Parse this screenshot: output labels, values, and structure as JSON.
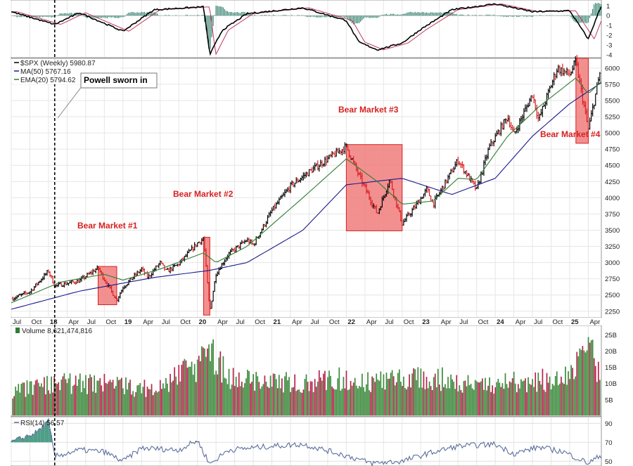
{
  "chart_data": {
    "type": "line",
    "main": {
      "symbol_label": "$SPX (Weekly) 5980.87",
      "ma_label": "MA(50) 5767.16",
      "ema_label": "EMA(20) 5794.62",
      "ylim": [
        2150,
        6150
      ],
      "y_ticks": [
        2250,
        2500,
        2750,
        3000,
        3250,
        3500,
        3750,
        4000,
        4250,
        4500,
        4750,
        5000,
        5250,
        5500,
        5750,
        6000
      ],
      "series": [
        {
          "name": "$SPX (Weekly)",
          "color": "#000000",
          "x": [
            "2017-07",
            "2017-10",
            "2018-01",
            "2018-02",
            "2018-06",
            "2018-09",
            "2018-10",
            "2018-12",
            "2019-01",
            "2019-04",
            "2019-05",
            "2019-07",
            "2019-08",
            "2019-10",
            "2020-01",
            "2020-02",
            "2020-03",
            "2020-04",
            "2020-06",
            "2020-09",
            "2020-10",
            "2021-01",
            "2021-04",
            "2021-07",
            "2021-10",
            "2022-01",
            "2022-03",
            "2022-06",
            "2022-08",
            "2022-10",
            "2022-12",
            "2023-02",
            "2023-03",
            "2023-07",
            "2023-10",
            "2023-12",
            "2024-03",
            "2024-04",
            "2024-07",
            "2024-08",
            "2024-11",
            "2025-01",
            "2025-02",
            "2025-04",
            "2025-06"
          ],
          "values": [
            2440,
            2550,
            2870,
            2640,
            2720,
            2920,
            2740,
            2420,
            2620,
            2900,
            2770,
            3000,
            2860,
            2980,
            3300,
            3370,
            2240,
            2830,
            3130,
            3350,
            3270,
            3800,
            4180,
            4400,
            4600,
            4790,
            4350,
            3750,
            4280,
            3600,
            3850,
            4130,
            3900,
            4580,
            4120,
            4770,
            5250,
            4970,
            5600,
            5200,
            6000,
            5900,
            6100,
            5050,
            5980
          ]
        },
        {
          "name": "MA(50)",
          "color": "#1a1a8c",
          "x": [
            "2017-07",
            "2018-06",
            "2019-06",
            "2020-03",
            "2020-09",
            "2021-06",
            "2022-01",
            "2022-10",
            "2023-06",
            "2024-01",
            "2024-07",
            "2025-01",
            "2025-06"
          ],
          "values": [
            2280,
            2560,
            2770,
            2880,
            3000,
            3500,
            4200,
            4300,
            4050,
            4300,
            4950,
            5450,
            5770
          ]
        },
        {
          "name": "EMA(20)",
          "color": "#2e7d32",
          "x": [
            "2017-07",
            "2018-03",
            "2018-10",
            "2019-01",
            "2019-07",
            "2020-02",
            "2020-04",
            "2020-09",
            "2021-06",
            "2022-01",
            "2022-06",
            "2022-10",
            "2023-03",
            "2023-07",
            "2023-10",
            "2024-03",
            "2024-08",
            "2025-02",
            "2025-04",
            "2025-06"
          ],
          "values": [
            2380,
            2700,
            2820,
            2730,
            2900,
            3150,
            3000,
            3250,
            4000,
            4600,
            4250,
            3900,
            3950,
            4300,
            4280,
            4950,
            5400,
            5850,
            5600,
            5790
          ]
        }
      ],
      "annotations": [
        {
          "label": "Bear Market #1",
          "start": "2018-09",
          "end": "2018-12",
          "low": 2350,
          "high": 2940
        },
        {
          "label": "Bear Market #2",
          "start": "2020-02",
          "end": "2020-03",
          "low": 2190,
          "high": 3390
        },
        {
          "label": "Bear Market #3",
          "start": "2022-01",
          "end": "2022-10",
          "low": 3490,
          "high": 4820
        },
        {
          "label": "Bear Market #4",
          "start": "2025-02",
          "end": "2025-04",
          "low": 4840,
          "high": 6150
        }
      ],
      "callout": "Powell sworn in",
      "vline_date": "2018-02"
    },
    "x_axis": {
      "labels": [
        "Jul",
        "Oct",
        "18",
        "Apr",
        "Jul",
        "Oct",
        "19",
        "Apr",
        "Jul",
        "Oct",
        "20",
        "Apr",
        "Jul",
        "Oct",
        "21",
        "Apr",
        "Jul",
        "Oct",
        "22",
        "Apr",
        "Jul",
        "Oct",
        "23",
        "Apr",
        "Jul",
        "Oct",
        "24",
        "Apr",
        "Jul",
        "Oct",
        "25",
        "Apr"
      ],
      "dates": [
        "2017-07",
        "2017-10",
        "2018-01",
        "2018-04",
        "2018-07",
        "2018-10",
        "2019-01",
        "2019-04",
        "2019-07",
        "2019-10",
        "2020-01",
        "2020-04",
        "2020-07",
        "2020-10",
        "2021-01",
        "2021-04",
        "2021-07",
        "2021-10",
        "2022-01",
        "2022-04",
        "2022-07",
        "2022-10",
        "2023-01",
        "2023-04",
        "2023-07",
        "2023-10",
        "2024-01",
        "2024-04",
        "2024-07",
        "2024-10",
        "2025-01",
        "2025-04"
      ],
      "year_labels": [
        "18",
        "19",
        "20",
        "21",
        "22",
        "23",
        "24",
        "25"
      ]
    },
    "volume": {
      "label": "Volume 8,621,474,816",
      "ylim": [
        0,
        27
      ],
      "y_ticks": [
        5,
        10,
        15,
        20,
        25
      ],
      "y_tick_labels": [
        "5B",
        "10B",
        "15B",
        "20B",
        "25B"
      ],
      "x": [
        "2017-07",
        "2018-02",
        "2018-10",
        "2019-06",
        "2020-02",
        "2020-03",
        "2020-06",
        "2021-01",
        "2022-01",
        "2022-06",
        "2023-03",
        "2024-01",
        "2024-08",
        "2025-01",
        "2025-04",
        "2025-06"
      ],
      "values": [
        9,
        12,
        12,
        10,
        20,
        24,
        15,
        12,
        14,
        13,
        14,
        12,
        13,
        15,
        26,
        13
      ]
    },
    "macd": {
      "y_ticks": [
        1,
        0,
        -1,
        -2,
        -3,
        -4
      ],
      "ylim": [
        -4.3,
        1.6
      ],
      "x": [
        "2017-07",
        "2018-02",
        "2018-06",
        "2019-01",
        "2019-06",
        "2020-02",
        "2020-03",
        "2020-05",
        "2020-09",
        "2021-06",
        "2022-01",
        "2022-03",
        "2022-06",
        "2022-10",
        "2023-01",
        "2023-06",
        "2024-01",
        "2024-07",
        "2025-01",
        "2025-04",
        "2025-06"
      ],
      "values": [
        0.4,
        -0.9,
        0.3,
        -1.6,
        0.6,
        0.9,
        -4.0,
        -1.5,
        0.2,
        0.8,
        -0.5,
        -2.7,
        -3.5,
        -2.8,
        -1.4,
        0.6,
        1.2,
        0.4,
        0.5,
        -2.4,
        0.9
      ]
    },
    "rsi": {
      "label": "RSI(14) 56.57",
      "y_ticks": [
        90,
        70,
        50
      ],
      "ylim": [
        45,
        97
      ],
      "x": [
        "2017-07",
        "2017-11",
        "2018-01",
        "2018-02",
        "2018-06",
        "2018-10",
        "2019-01",
        "2019-04",
        "2019-10",
        "2020-01",
        "2020-03",
        "2020-06",
        "2021-01",
        "2021-06",
        "2022-01",
        "2022-05",
        "2022-10",
        "2023-02",
        "2023-07",
        "2024-01",
        "2024-04",
        "2024-08",
        "2024-12",
        "2025-04",
        "2025-06"
      ],
      "values": [
        70,
        80,
        92,
        55,
        62,
        60,
        50,
        64,
        62,
        72,
        47,
        62,
        66,
        68,
        56,
        48,
        50,
        58,
        66,
        68,
        58,
        65,
        60,
        48,
        56
      ]
    }
  }
}
